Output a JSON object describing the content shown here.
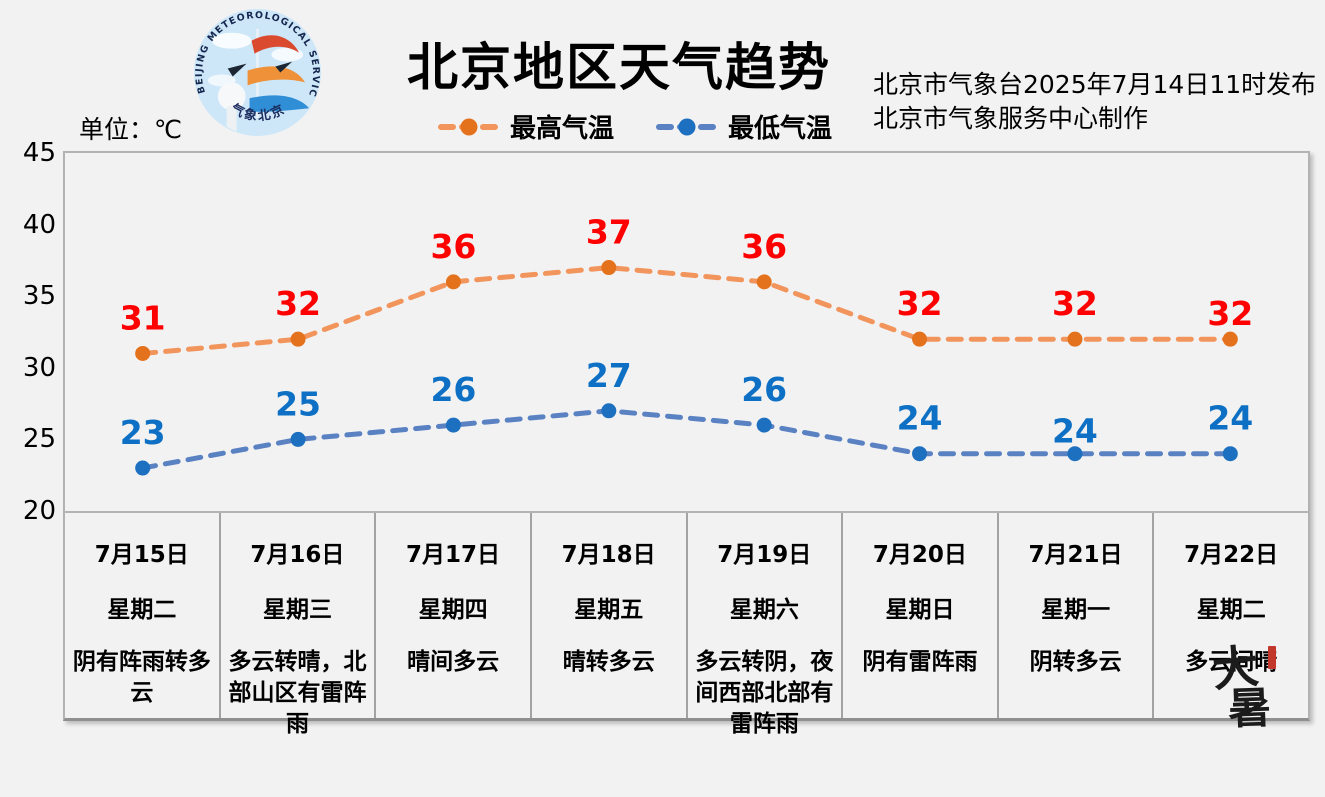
{
  "header": {
    "title": "北京地区天气趋势",
    "unit_label": "单位：℃",
    "issued_line1": "北京市气象台2025年7月14日11时发布",
    "issued_line2": "北京市气象服务中心制作",
    "logo_ring_text": "BEIJING METEOROLOGICAL SERVICE",
    "logo_bottom_text": "气象北京"
  },
  "chart_data": {
    "type": "line",
    "title": "北京地区天气趋势",
    "unit": "℃",
    "categories": [
      "7月15日",
      "7月16日",
      "7月17日",
      "7月18日",
      "7月19日",
      "7月20日",
      "7月21日",
      "7月22日"
    ],
    "series": [
      {
        "name": "最高气温",
        "values": [
          31,
          32,
          36,
          37,
          36,
          32,
          32,
          32
        ],
        "line_color": "#F2955C",
        "marker_color": "#E4711C",
        "label_color": "#FF0000",
        "label_dy": [
          0,
          0,
          0,
          0,
          0,
          0,
          0,
          10
        ]
      },
      {
        "name": "最低气温",
        "values": [
          23,
          25,
          26,
          27,
          26,
          24,
          24,
          24
        ],
        "line_color": "#5A82C3",
        "marker_color": "#1D70C0",
        "label_color": "#0E70C4",
        "label_dy": [
          0,
          0,
          0,
          0,
          0,
          0,
          13,
          0
        ]
      }
    ],
    "ylim": [
      20,
      45
    ],
    "yticks": [
      45,
      40,
      35,
      30,
      25,
      20
    ],
    "grid": false,
    "line_style": "dashed",
    "marker": "circle",
    "legend_position": "top"
  },
  "table": {
    "days": [
      {
        "date": "7月15日",
        "weekday": "星期二",
        "weather": "阴有阵雨转多云"
      },
      {
        "date": "7月16日",
        "weekday": "星期三",
        "weather": "多云转晴，北部山区有雷阵雨"
      },
      {
        "date": "7月17日",
        "weekday": "星期四",
        "weather": "晴间多云"
      },
      {
        "date": "7月18日",
        "weekday": "星期五",
        "weather": "晴转多云"
      },
      {
        "date": "7月19日",
        "weekday": "星期六",
        "weather": "多云转阴，夜间西部北部有雷阵雨"
      },
      {
        "date": "7月20日",
        "weekday": "星期日",
        "weather": "阴有雷阵雨"
      },
      {
        "date": "7月21日",
        "weekday": "星期一",
        "weather": "阴转多云"
      },
      {
        "date": "7月22日",
        "weekday": "星期二",
        "weather": "多云间晴"
      }
    ]
  },
  "solar_term": {
    "char1": "大",
    "char2": "暑",
    "ink_color": "#1B1B1B",
    "seal_color": "#C2392B"
  }
}
